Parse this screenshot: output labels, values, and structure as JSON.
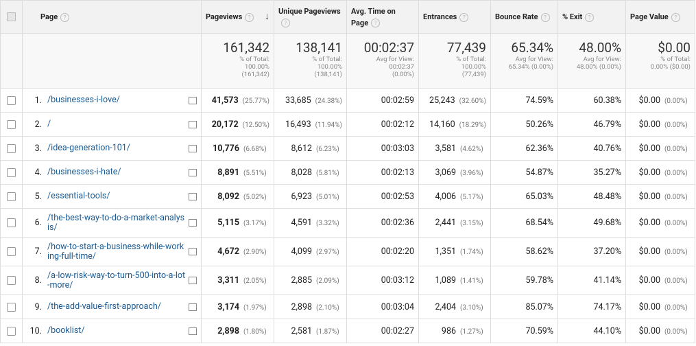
{
  "table": {
    "headers": [
      "Page",
      "Pageviews",
      "Unique Pageviews",
      "Avg. Time on Page",
      "Entrances",
      "Bounce Rate",
      "% Exit",
      "Page Value"
    ],
    "totals": [
      {
        "value": "161,342",
        "note": "% of Total: 100.00% (161,342)"
      },
      {
        "value": "138,141",
        "note": "% of Total: 100.00% (138,141)"
      },
      {
        "value": "00:02:37",
        "note": "Avg for View: 00:02:37 (0.00%)"
      },
      {
        "value": "77,439",
        "note": "% of Total: 100.00% (77,439)"
      },
      {
        "value": "65.34%",
        "note": "Avg for View: 65.34% (0.00%)"
      },
      {
        "value": "48.00%",
        "note": "Avg for View: 48.00% (0.00%)"
      },
      {
        "value": "$0.00",
        "note": "% of Total: 0.00% ($0.00)"
      }
    ],
    "rows": [
      [
        "1.",
        "/businesses-i-love/",
        "41,573",
        "(25.77%)",
        "33,685",
        "(24.38%)",
        "00:02:59",
        "25,243",
        "(32.60%)",
        "74.59%",
        "60.38%",
        "$0.00",
        "(0.00%)"
      ],
      [
        "2.",
        "/",
        "20,172",
        "(12.50%)",
        "16,493",
        "(11.94%)",
        "00:02:12",
        "14,160",
        "(18.29%)",
        "50.26%",
        "46.79%",
        "$0.00",
        "(0.00%)"
      ],
      [
        "3.",
        "/idea-generation-101/",
        "10,776",
        "(6.68%)",
        "8,612",
        "(6.23%)",
        "00:03:03",
        "3,581",
        "(4.62%)",
        "62.36%",
        "40.76%",
        "$0.00",
        "(0.00%)"
      ],
      [
        "4.",
        "/businesses-i-hate/",
        "8,891",
        "(5.51%)",
        "8,028",
        "(5.81%)",
        "00:02:13",
        "3,069",
        "(3.96%)",
        "54.87%",
        "35.27%",
        "$0.00",
        "(0.00%)"
      ],
      [
        "5.",
        "/essential-tools/",
        "8,092",
        "(5.02%)",
        "6,923",
        "(5.01%)",
        "00:02:53",
        "4,006",
        "(5.17%)",
        "65.03%",
        "48.48%",
        "$0.00",
        "(0.00%)"
      ],
      [
        "6.",
        "/the-best-way-to-do-a-market-analysis/",
        "5,115",
        "(3.17%)",
        "4,591",
        "(3.32%)",
        "00:02:36",
        "2,441",
        "(3.15%)",
        "68.54%",
        "49.68%",
        "$0.00",
        "(0.00%)"
      ],
      [
        "7.",
        "/how-to-start-a-business-while-working-full-time/",
        "4,672",
        "(2.90%)",
        "4,099",
        "(2.97%)",
        "00:02:20",
        "1,351",
        "(1.74%)",
        "58.62%",
        "37.20%",
        "$0.00",
        "(0.00%)"
      ],
      [
        "8.",
        "/a-low-risk-way-to-turn-500-into-a-lot-more/",
        "3,311",
        "(2.05%)",
        "2,885",
        "(2.09%)",
        "00:03:12",
        "1,089",
        "(1.41%)",
        "59.78%",
        "41.14%",
        "$0.00",
        "(0.00%)"
      ],
      [
        "9.",
        "/the-add-value-first-approach/",
        "3,174",
        "(1.97%)",
        "2,898",
        "(2.10%)",
        "00:03:04",
        "2,404",
        "(3.10%)",
        "85.07%",
        "74.17%",
        "$0.00",
        "(0.00%)"
      ],
      [
        "10.",
        "/booklist/",
        "2,898",
        "(1.80%)",
        "2,581",
        "(1.87%)",
        "00:02:27",
        "986",
        "(1.27%)",
        "70.59%",
        "44.10%",
        "$0.00",
        "(0.00%)"
      ]
    ]
  }
}
